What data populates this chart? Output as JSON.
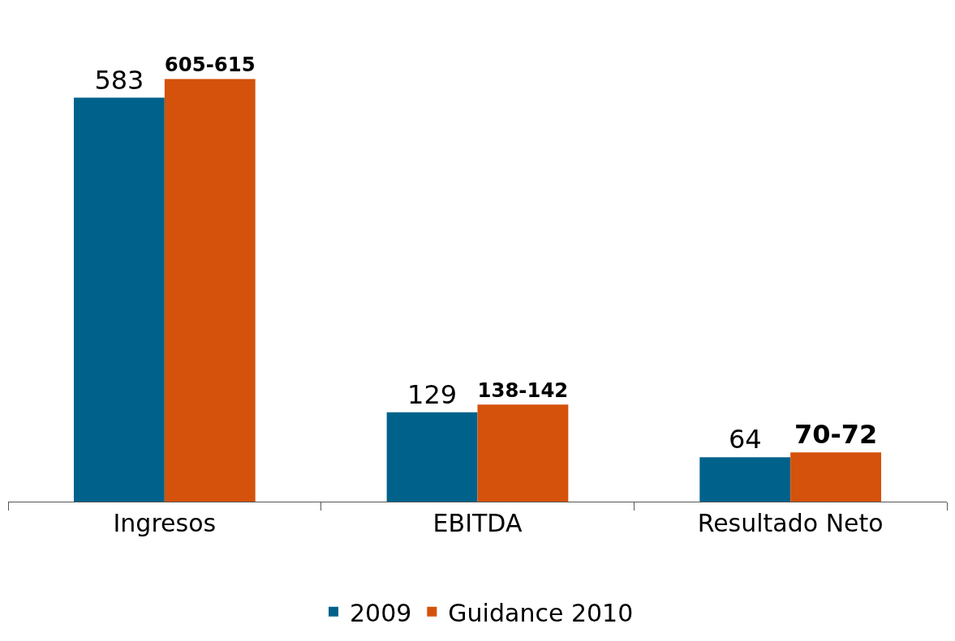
{
  "chart_data": {
    "type": "bar",
    "categories": [
      "Ingresos",
      "EBITDA",
      "Resultado Neto"
    ],
    "series": [
      {
        "name": "2009",
        "color": "#00628b",
        "values": [
          583,
          129,
          64
        ],
        "value_labels": [
          "583",
          "129",
          "64"
        ]
      },
      {
        "name": "Guidance 2010",
        "color": "#d4520b",
        "values": [
          610,
          140,
          71
        ],
        "value_labels": [
          "605-615",
          "138-142",
          "70-72"
        ]
      }
    ],
    "legend": "bottom",
    "grid": false
  }
}
